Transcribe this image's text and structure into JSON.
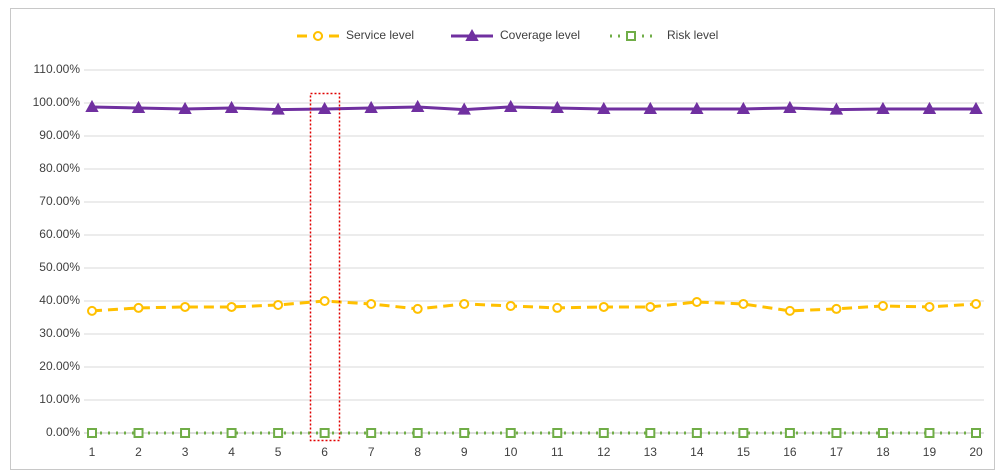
{
  "chart_data": {
    "type": "line",
    "categories": [
      "1",
      "2",
      "3",
      "4",
      "5",
      "6",
      "7",
      "8",
      "9",
      "10",
      "11",
      "12",
      "13",
      "14",
      "15",
      "16",
      "17",
      "18",
      "19",
      "20"
    ],
    "series": [
      {
        "name": "Service level",
        "color": "#FFC000",
        "line_style": "dashed",
        "marker": "circle",
        "values": [
          37,
          37.9,
          38.2,
          38.2,
          38.8,
          40,
          39.1,
          37.6,
          39.1,
          38.5,
          37.9,
          38.2,
          38.2,
          39.7,
          39.1,
          37,
          37.6,
          38.5,
          38.2,
          39.1
        ]
      },
      {
        "name": "Coverage level",
        "color": "#7030A0",
        "line_style": "solid",
        "marker": "triangle",
        "values": [
          98.8,
          98.5,
          98.2,
          98.5,
          98,
          98.2,
          98.5,
          98.8,
          98,
          98.8,
          98.5,
          98.2,
          98.2,
          98.2,
          98.2,
          98.5,
          98,
          98.2,
          98.2,
          98.2
        ]
      },
      {
        "name": "Risk level",
        "color": "#70AD47",
        "line_style": "dotted",
        "marker": "square",
        "values": [
          0,
          0,
          0,
          0,
          0,
          0,
          0,
          0,
          0,
          0,
          0,
          0,
          0,
          0,
          0,
          0,
          0,
          0,
          0,
          0
        ]
      }
    ],
    "ylim": [
      0,
      110
    ],
    "yticks": [
      {
        "value": 0,
        "label": "0.00%"
      },
      {
        "value": 10,
        "label": "10.00%"
      },
      {
        "value": 20,
        "label": "20.00%"
      },
      {
        "value": 30,
        "label": "30.00%"
      },
      {
        "value": 40,
        "label": "40.00%"
      },
      {
        "value": 50,
        "label": "50.00%"
      },
      {
        "value": 60,
        "label": "60.00%"
      },
      {
        "value": 70,
        "label": "70.00%"
      },
      {
        "value": 80,
        "label": "80.00%"
      },
      {
        "value": 90,
        "label": "90.00%"
      },
      {
        "value": 100,
        "label": "100.00%"
      },
      {
        "value": 110,
        "label": "110.00%"
      }
    ],
    "grid": true,
    "legend": "top"
  }
}
